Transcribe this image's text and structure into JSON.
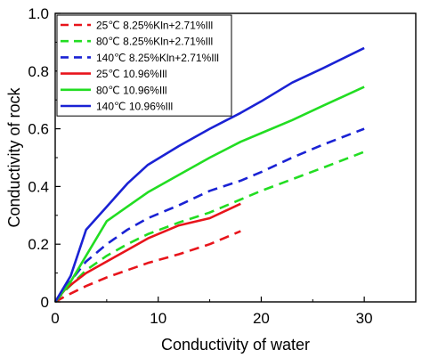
{
  "chart_data": {
    "type": "line",
    "xlabel": "Conductivity of water",
    "ylabel": "Conductivity of rock",
    "xlim": [
      0,
      35
    ],
    "ylim": [
      0,
      1.0
    ],
    "xticks": [
      0,
      10,
      20,
      30
    ],
    "yticks": [
      0,
      0.2,
      0.4,
      0.6,
      0.8,
      1.0
    ],
    "ytick_labels": [
      "0",
      "0.2",
      "0.4",
      "0.6",
      "0.8",
      "1.0"
    ],
    "legend_position": "top-left",
    "series": [
      {
        "name": "25℃ 8.25%Kln+2.71%Ill",
        "color": "#e8141b",
        "dashed": true,
        "x": [
          0,
          1,
          3,
          5,
          7,
          9,
          12,
          15,
          18
        ],
        "y": [
          0,
          0.02,
          0.055,
          0.085,
          0.11,
          0.135,
          0.165,
          0.2,
          0.245
        ]
      },
      {
        "name": "80℃ 8.25%Kln+2.71%Ill",
        "color": "#22dd22",
        "dashed": true,
        "x": [
          0,
          1,
          3,
          5,
          7,
          9,
          12,
          15,
          18,
          20,
          23,
          26,
          30
        ],
        "y": [
          0,
          0.04,
          0.11,
          0.16,
          0.2,
          0.235,
          0.275,
          0.31,
          0.355,
          0.385,
          0.425,
          0.465,
          0.52
        ]
      },
      {
        "name": "140℃ 8.25%Kln+2.71%Ill",
        "color": "#1a22d4",
        "dashed": true,
        "x": [
          0,
          1,
          3,
          5,
          7,
          9,
          12,
          15,
          18,
          20,
          23,
          26,
          30
        ],
        "y": [
          0,
          0.05,
          0.14,
          0.2,
          0.25,
          0.29,
          0.335,
          0.385,
          0.42,
          0.45,
          0.5,
          0.545,
          0.6
        ]
      },
      {
        "name": "25℃ 10.96%Ill",
        "color": "#e8141b",
        "dashed": false,
        "x": [
          0,
          1,
          3,
          5,
          7,
          9,
          12,
          15,
          18
        ],
        "y": [
          0,
          0.045,
          0.1,
          0.14,
          0.18,
          0.22,
          0.265,
          0.29,
          0.34
        ]
      },
      {
        "name": "80℃ 10.96%Ill",
        "color": "#22dd22",
        "dashed": false,
        "x": [
          0,
          1.5,
          3,
          5,
          7,
          9,
          12,
          15,
          18,
          20,
          23,
          26,
          30
        ],
        "y": [
          0,
          0.07,
          0.16,
          0.28,
          0.33,
          0.38,
          0.44,
          0.5,
          0.555,
          0.585,
          0.63,
          0.68,
          0.745
        ]
      },
      {
        "name": "140℃ 10.96%Ill",
        "color": "#1a22d4",
        "dashed": false,
        "x": [
          0,
          1.5,
          3,
          5,
          7,
          9,
          12,
          15,
          18,
          20,
          23,
          26,
          30
        ],
        "y": [
          0,
          0.09,
          0.25,
          0.33,
          0.41,
          0.475,
          0.54,
          0.6,
          0.655,
          0.695,
          0.76,
          0.81,
          0.88
        ]
      }
    ]
  }
}
